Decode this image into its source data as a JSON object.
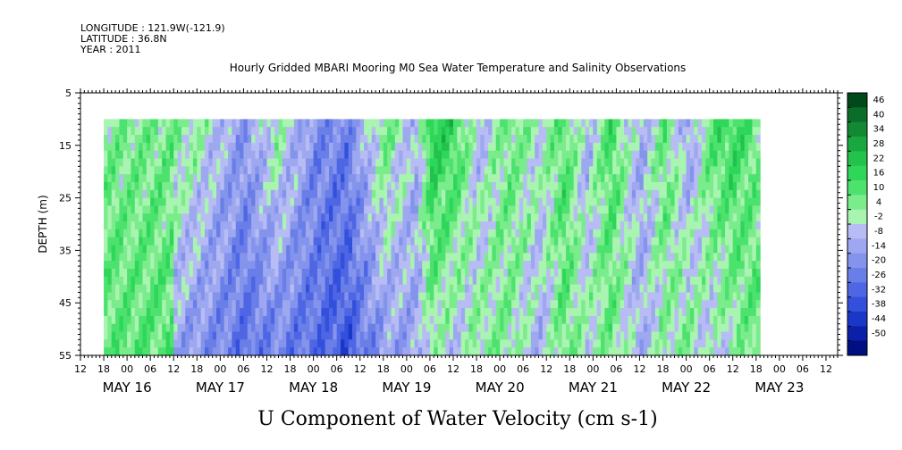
{
  "header": {
    "longitude": "LONGITUDE : 121.9W(-121.9)",
    "latitude": "LATITUDE : 36.8N",
    "year": "YEAR : 2011"
  },
  "chart_data": {
    "type": "heatmap",
    "title": "Hourly Gridded MBARI Mooring M0 Sea Water Temperature and Salinity Observations",
    "xlabel": "U Component of Water Velocity (cm s-1)",
    "ylabel": "DEPTH (m)",
    "y_ticks": [
      "5",
      "15",
      "25",
      "35",
      "45",
      "55"
    ],
    "ylim": [
      5,
      55
    ],
    "y_reversed": true,
    "x_hour_ticks": [
      "12",
      "18",
      "00",
      "06",
      "12",
      "18",
      "00",
      "06",
      "12",
      "18",
      "00",
      "06",
      "12",
      "18",
      "00",
      "06",
      "12",
      "18",
      "00",
      "06",
      "12",
      "18",
      "00",
      "06",
      "12",
      "18",
      "00",
      "06",
      "12",
      "18",
      "00",
      "06",
      "12"
    ],
    "x_date_labels": [
      "MAY 16",
      "MAY 17",
      "MAY 18",
      "MAY 19",
      "MAY 20",
      "MAY 21",
      "MAY 22",
      "MAY 23"
    ],
    "data_depth_range_m": [
      10,
      55
    ],
    "data_start": "MAY 16 18",
    "data_end": "MAY 23 12",
    "colorbar": {
      "range": [
        -50,
        50
      ],
      "labels": [
        "46",
        "40",
        "34",
        "28",
        "22",
        "16",
        "10",
        "4",
        "-2",
        "-8",
        "-14",
        "-20",
        "-26",
        "-32",
        "-38",
        "-44",
        "-50"
      ],
      "colors": [
        "#004a1a",
        "#0a6e28",
        "#128a34",
        "#19a840",
        "#22c24c",
        "#2ed65a",
        "#4de26e",
        "#7aec8c",
        "#a8f4b0",
        "#b8bcf4",
        "#9ea8f0",
        "#8494ec",
        "#6a7ee8",
        "#4e66e4",
        "#3250dc",
        "#1a38c8",
        "#0a20a8",
        "#001080"
      ],
      "notable_colors": {
        "positive": "#2ed65a",
        "negative": "#6a7ee8"
      }
    },
    "profile_note": "Values estimated from shading: time blocks of U (cm s-1) from surface to depth",
    "blocks": [
      {
        "hour": 18,
        "u_top": 8,
        "u_bottom": -10
      },
      {
        "hour": 24,
        "u_top": 4,
        "u_bottom": -14
      },
      {
        "hour": 36,
        "u_top": -12,
        "u_bottom": -22
      },
      {
        "hour": 44,
        "u_top": 6,
        "u_bottom": -18
      },
      {
        "hour": 54,
        "u_top": -14,
        "u_bottom": -24
      },
      {
        "hour": 62,
        "u_top": -18,
        "u_bottom": -28
      },
      {
        "hour": 72,
        "u_top": 10,
        "u_bottom": -12
      },
      {
        "hour": 80,
        "u_top": -6,
        "u_bottom": -8
      },
      {
        "hour": 84,
        "u_top": 22,
        "u_bottom": 4
      },
      {
        "hour": 90,
        "u_top": 18,
        "u_bottom": -4
      },
      {
        "hour": 96,
        "u_top": -4,
        "u_bottom": 6
      },
      {
        "hour": 104,
        "u_top": 10,
        "u_bottom": 6
      },
      {
        "hour": 112,
        "u_top": 2,
        "u_bottom": -6
      },
      {
        "hour": 118,
        "u_top": 14,
        "u_bottom": 10
      },
      {
        "hour": 124,
        "u_top": -6,
        "u_bottom": 2
      },
      {
        "hour": 130,
        "u_top": 16,
        "u_bottom": 8
      },
      {
        "hour": 138,
        "u_top": -8,
        "u_bottom": -6
      },
      {
        "hour": 144,
        "u_top": 12,
        "u_bottom": 4
      },
      {
        "hour": 150,
        "u_top": -10,
        "u_bottom": 8
      },
      {
        "hour": 156,
        "u_top": 14,
        "u_bottom": -4
      },
      {
        "hour": 162,
        "u_top": 18,
        "u_bottom": 4
      },
      {
        "hour": 168,
        "u_top": 8,
        "u_bottom": 12
      }
    ]
  }
}
